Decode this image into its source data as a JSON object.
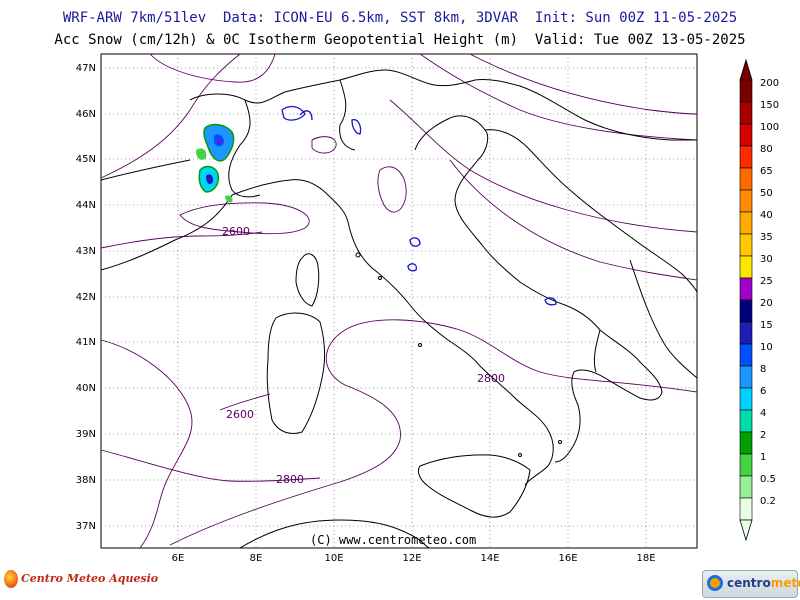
{
  "header": {
    "line1": "WRF-ARW 7km/51lev  Data: ICON-EU 6.5km, SST 8km, 3DVAR  Init: Sun 00Z 11-05-2025",
    "line2": "Acc Snow (cm/12h) & 0C Isotherm Geopotential Height (m)  Valid: Tue 00Z 13-05-2025"
  },
  "map": {
    "lat_labels": [
      "47N",
      "46N",
      "45N",
      "44N",
      "43N",
      "42N",
      "41N",
      "40N",
      "39N",
      "38N",
      "37N"
    ],
    "lon_labels": [
      "6E",
      "8E",
      "10E",
      "12E",
      "14E",
      "16E",
      "18E"
    ],
    "contour_labels": [
      "2600",
      "2800",
      "2600",
      "2800"
    ],
    "copyright": "(C) www.centrometeo.com",
    "colors": {
      "coast": "#000000",
      "contour": "#5a0060",
      "lakes": "#1414c8",
      "grid": "#888888"
    }
  },
  "colorbar": {
    "levels": [
      "200",
      "150",
      "100",
      "80",
      "65",
      "50",
      "40",
      "35",
      "30",
      "25",
      "20",
      "15",
      "10",
      "8",
      "6",
      "4",
      "2",
      "1",
      "0.5",
      "0.2"
    ],
    "colors": [
      "#7a0000",
      "#a80000",
      "#d80000",
      "#ff2a00",
      "#ff6a00",
      "#ff8c00",
      "#ffab00",
      "#ffc800",
      "#ffe600",
      "#a000c8",
      "#00007a",
      "#1e1eb4",
      "#0050ff",
      "#1e96ff",
      "#00d2ff",
      "#00dcaa",
      "#00a000",
      "#46d246",
      "#96f096",
      "#e6ffe6"
    ]
  },
  "logos": {
    "left": "Centro Meteo Aquesio",
    "right_a": "centro",
    "right_b": "meteo"
  }
}
